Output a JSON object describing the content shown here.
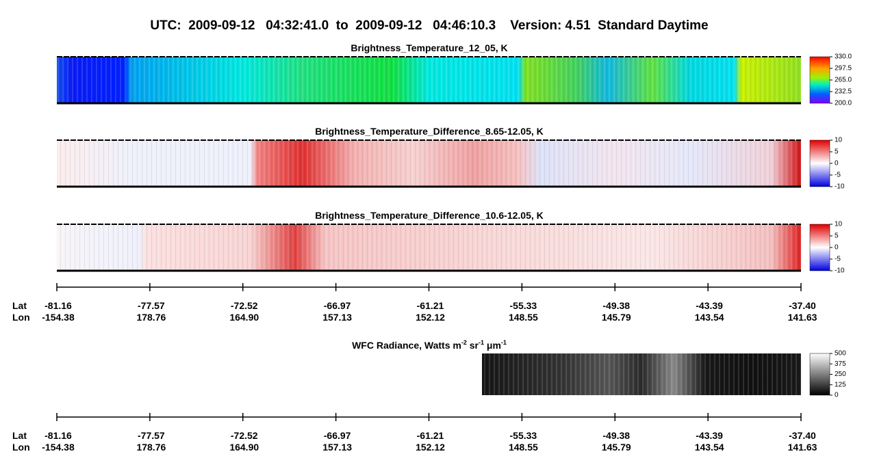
{
  "header": {
    "title": "UTC:  2009-09-12   04:32:41.0  to  2009-09-12   04:46:10.3    Version: 4.51  Standard Daytime"
  },
  "panels": [
    {
      "title": "Brightness_Temperature_12_05, K",
      "colorbar": [
        "330.0",
        "297.5",
        "265.0",
        "232.5",
        "200.0"
      ]
    },
    {
      "title": "Brightness_Temperature_Difference_8.65-12.05, K",
      "colorbar": [
        "10",
        "5",
        "0",
        "-5",
        "-10"
      ]
    },
    {
      "title": "Brightness_Temperature_Difference_10.6-12.05, K",
      "colorbar": [
        "10",
        "5",
        "0",
        "-5",
        "-10"
      ]
    }
  ],
  "wfc": {
    "title_parts": [
      "WFC Radiance, Watts m",
      "-2",
      " sr",
      "-1",
      " μm",
      "-1"
    ],
    "colorbar": [
      "500",
      "375",
      "250",
      "125",
      "0"
    ]
  },
  "axis": {
    "lat_label": "Lat",
    "lon_label": "Lon",
    "lat": [
      "-81.16",
      "-77.57",
      "-72.52",
      "-66.97",
      "-61.21",
      "-55.33",
      "-49.38",
      "-43.39",
      "-37.40"
    ],
    "lon": [
      "-154.38",
      "178.76",
      "164.90",
      "157.13",
      "152.12",
      "148.55",
      "145.79",
      "143.54",
      "141.63"
    ]
  }
}
